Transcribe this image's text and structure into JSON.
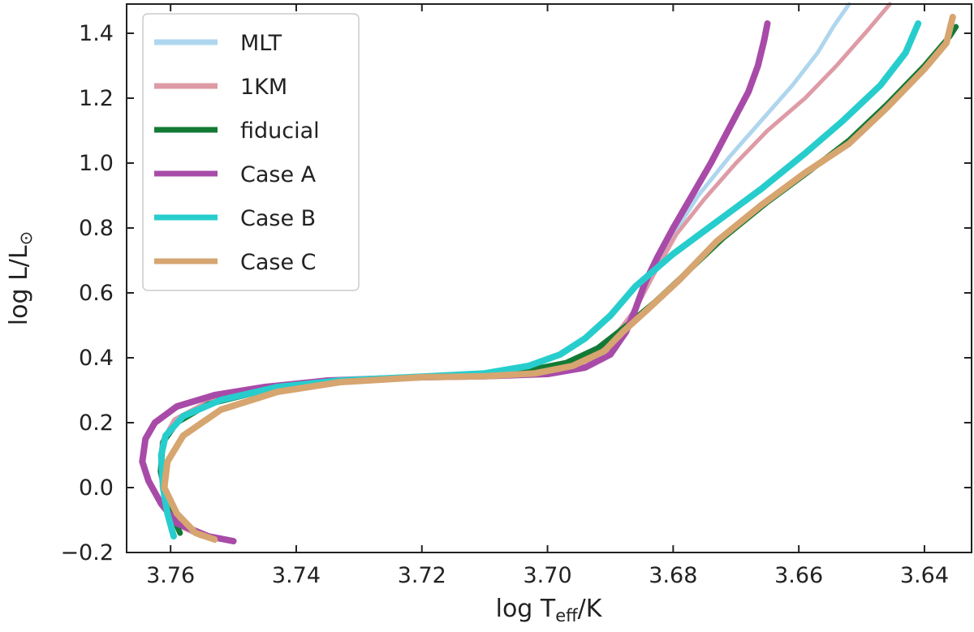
{
  "chart_data": {
    "type": "line",
    "xlabel": "log T",
    "xlabel_sub": "eff",
    "xlabel_suffix": "/K",
    "ylabel": "log L/L",
    "ylabel_suffix": "⊙",
    "xlim": [
      3.767,
      3.6325
    ],
    "ylim": [
      -0.2,
      1.49
    ],
    "x_reversed": true,
    "grid": false,
    "legend": "top-left",
    "x_ticks": [
      3.76,
      3.74,
      3.72,
      3.7,
      3.68,
      3.66,
      3.64
    ],
    "x_tick_labels": [
      "3.76",
      "3.74",
      "3.72",
      "3.70",
      "3.68",
      "3.66",
      "3.64"
    ],
    "y_ticks": [
      -0.2,
      0.0,
      0.2,
      0.4,
      0.6,
      0.8,
      1.0,
      1.2,
      1.4
    ],
    "y_tick_labels": [
      "−0.2",
      "0.0",
      "0.2",
      "0.4",
      "0.6",
      "0.8",
      "1.0",
      "1.2",
      "1.4"
    ],
    "series": [
      {
        "name": "MLT",
        "color": "#aed6ee",
        "width": 5,
        "points": [
          [
            3.7552,
            -0.15
          ],
          [
            3.758,
            -0.125
          ],
          [
            3.7604,
            -0.05
          ],
          [
            3.7617,
            0.05
          ],
          [
            3.7614,
            0.14
          ],
          [
            3.7594,
            0.21
          ],
          [
            3.754,
            0.266
          ],
          [
            3.745,
            0.31
          ],
          [
            3.735,
            0.332
          ],
          [
            3.72,
            0.34
          ],
          [
            3.71,
            0.345
          ],
          [
            3.702,
            0.36
          ],
          [
            3.695,
            0.39
          ],
          [
            3.69,
            0.45
          ],
          [
            3.686,
            0.55
          ],
          [
            3.683,
            0.66
          ],
          [
            3.68,
            0.78
          ],
          [
            3.676,
            0.9
          ],
          [
            3.671,
            1.02
          ],
          [
            3.666,
            1.13
          ],
          [
            3.661,
            1.24
          ],
          [
            3.657,
            1.34
          ],
          [
            3.6545,
            1.42
          ],
          [
            3.652,
            1.49
          ]
        ]
      },
      {
        "name": "1KM",
        "color": "#de9ba6",
        "width": 5,
        "points": [
          [
            3.7552,
            -0.15
          ],
          [
            3.758,
            -0.125
          ],
          [
            3.7604,
            -0.05
          ],
          [
            3.7617,
            0.05
          ],
          [
            3.7614,
            0.14
          ],
          [
            3.7594,
            0.21
          ],
          [
            3.754,
            0.266
          ],
          [
            3.745,
            0.31
          ],
          [
            3.735,
            0.332
          ],
          [
            3.72,
            0.34
          ],
          [
            3.71,
            0.345
          ],
          [
            3.702,
            0.36
          ],
          [
            3.695,
            0.39
          ],
          [
            3.69,
            0.45
          ],
          [
            3.686,
            0.55
          ],
          [
            3.683,
            0.66
          ],
          [
            3.6795,
            0.78
          ],
          [
            3.675,
            0.89
          ],
          [
            3.67,
            1.0
          ],
          [
            3.665,
            1.1
          ],
          [
            3.659,
            1.2
          ],
          [
            3.654,
            1.3
          ],
          [
            3.649,
            1.41
          ],
          [
            3.6455,
            1.49
          ]
        ]
      },
      {
        "name": "fiducial",
        "color": "#137a35",
        "width": 7,
        "points": [
          [
            3.7585,
            -0.14
          ],
          [
            3.7605,
            -0.05
          ],
          [
            3.7616,
            0.05
          ],
          [
            3.7612,
            0.14
          ],
          [
            3.759,
            0.2
          ],
          [
            3.754,
            0.257
          ],
          [
            3.745,
            0.3
          ],
          [
            3.735,
            0.325
          ],
          [
            3.72,
            0.34
          ],
          [
            3.71,
            0.348
          ],
          [
            3.703,
            0.362
          ],
          [
            3.697,
            0.385
          ],
          [
            3.692,
            0.43
          ],
          [
            3.688,
            0.49
          ],
          [
            3.683,
            0.57
          ],
          [
            3.678,
            0.66
          ],
          [
            3.672,
            0.77
          ],
          [
            3.665,
            0.88
          ],
          [
            3.658,
            0.98
          ],
          [
            3.652,
            1.07
          ],
          [
            3.646,
            1.18
          ],
          [
            3.64,
            1.3
          ],
          [
            3.636,
            1.39
          ],
          [
            3.635,
            1.42
          ]
        ]
      },
      {
        "name": "Case A",
        "color": "#a84ba8",
        "width": 8,
        "points": [
          [
            3.75,
            -0.165
          ],
          [
            3.754,
            -0.15
          ],
          [
            3.759,
            -0.11
          ],
          [
            3.7615,
            -0.05
          ],
          [
            3.7635,
            0.02
          ],
          [
            3.7645,
            0.08
          ],
          [
            3.764,
            0.15
          ],
          [
            3.7625,
            0.2
          ],
          [
            3.759,
            0.25
          ],
          [
            3.753,
            0.285
          ],
          [
            3.745,
            0.31
          ],
          [
            3.735,
            0.33
          ],
          [
            3.72,
            0.34
          ],
          [
            3.71,
            0.343
          ],
          [
            3.7,
            0.35
          ],
          [
            3.694,
            0.37
          ],
          [
            3.69,
            0.41
          ],
          [
            3.6875,
            0.48
          ],
          [
            3.686,
            0.55
          ],
          [
            3.6845,
            0.63
          ],
          [
            3.6825,
            0.71
          ],
          [
            3.68,
            0.8
          ],
          [
            3.677,
            0.9
          ],
          [
            3.674,
            1.0
          ],
          [
            3.671,
            1.11
          ],
          [
            3.668,
            1.22
          ],
          [
            3.6665,
            1.3
          ],
          [
            3.6655,
            1.38
          ],
          [
            3.665,
            1.43
          ]
        ]
      },
      {
        "name": "Case B",
        "color": "#27cdcd",
        "width": 8,
        "points": [
          [
            3.7595,
            -0.15
          ],
          [
            3.7605,
            -0.08
          ],
          [
            3.7612,
            0.0
          ],
          [
            3.7615,
            0.1
          ],
          [
            3.7608,
            0.16
          ],
          [
            3.758,
            0.22
          ],
          [
            3.752,
            0.27
          ],
          [
            3.743,
            0.31
          ],
          [
            3.733,
            0.33
          ],
          [
            3.72,
            0.342
          ],
          [
            3.71,
            0.352
          ],
          [
            3.703,
            0.375
          ],
          [
            3.698,
            0.41
          ],
          [
            3.694,
            0.46
          ],
          [
            3.69,
            0.53
          ],
          [
            3.686,
            0.62
          ],
          [
            3.68,
            0.72
          ],
          [
            3.673,
            0.82
          ],
          [
            3.666,
            0.92
          ],
          [
            3.659,
            1.03
          ],
          [
            3.653,
            1.13
          ],
          [
            3.647,
            1.24
          ],
          [
            3.643,
            1.34
          ],
          [
            3.641,
            1.43
          ]
        ]
      },
      {
        "name": "Case C",
        "color": "#d6a570",
        "width": 8,
        "points": [
          [
            3.753,
            -0.16
          ],
          [
            3.756,
            -0.14
          ],
          [
            3.759,
            -0.08
          ],
          [
            3.761,
            0.0
          ],
          [
            3.7605,
            0.08
          ],
          [
            3.758,
            0.16
          ],
          [
            3.752,
            0.24
          ],
          [
            3.743,
            0.295
          ],
          [
            3.733,
            0.325
          ],
          [
            3.72,
            0.34
          ],
          [
            3.71,
            0.343
          ],
          [
            3.702,
            0.352
          ],
          [
            3.696,
            0.375
          ],
          [
            3.691,
            0.42
          ],
          [
            3.688,
            0.48
          ],
          [
            3.684,
            0.55
          ],
          [
            3.679,
            0.64
          ],
          [
            3.673,
            0.76
          ],
          [
            3.666,
            0.87
          ],
          [
            3.659,
            0.97
          ],
          [
            3.652,
            1.06
          ],
          [
            3.646,
            1.17
          ],
          [
            3.64,
            1.29
          ],
          [
            3.6365,
            1.37
          ],
          [
            3.6355,
            1.45
          ]
        ]
      }
    ]
  }
}
